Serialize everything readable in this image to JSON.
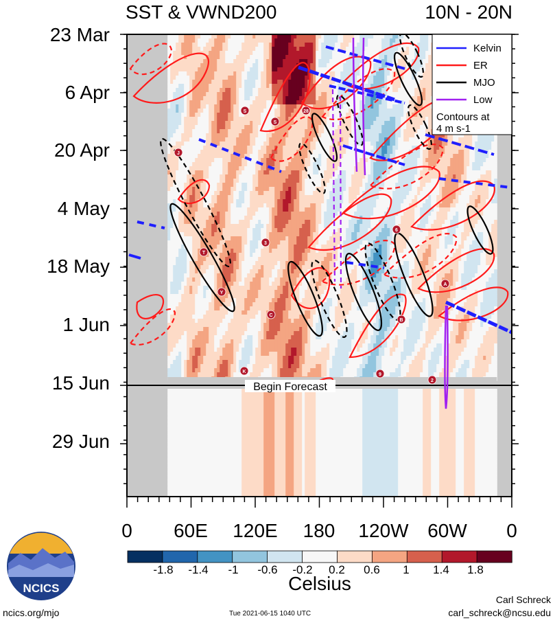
{
  "chart_data": {
    "type": "heatmap",
    "title_left": "SST & VWND200",
    "title_right": "10N - 20N",
    "y_ticks": [
      "23 Mar",
      "6 Apr",
      "20 Apr",
      "4 May",
      "18 May",
      "1 Jun",
      "15 Jun",
      "29 Jun"
    ],
    "x_ticks": [
      "0",
      "60E",
      "120E",
      "180",
      "120W",
      "60W",
      "0"
    ],
    "x_range_deg": [
      0,
      360
    ],
    "forecast_label": "Begin Forecast",
    "legend": {
      "entries": [
        {
          "label": "Kelvin",
          "color": "#1f1fff"
        },
        {
          "label": "ER",
          "color": "#ff1a1a"
        },
        {
          "label": "MJO",
          "color": "#000000"
        },
        {
          "label": "Low",
          "color": "#a020f0"
        }
      ],
      "note_line1": "Contours at",
      "note_line2": "4 m s-1"
    },
    "colorbar": {
      "label": "Celsius",
      "tick_labels": [
        "-1.8",
        "-1.4",
        "-1",
        "-0.6",
        "-0.2",
        "0.2",
        "0.6",
        "1",
        "1.4",
        "1.8"
      ],
      "colors": [
        "#053061",
        "#2166ac",
        "#4393c3",
        "#92c5de",
        "#d1e5f0",
        "#f7f7f7",
        "#fddbc7",
        "#f4a582",
        "#d6604d",
        "#b2182b",
        "#67001f"
      ]
    },
    "storm_markers": [
      "S",
      "S",
      "28",
      "J",
      "T",
      "Y",
      "3",
      "C",
      "K",
      "A",
      "B",
      "6",
      "9",
      "2"
    ]
  },
  "footer": {
    "logo_text": "NCICS",
    "url": "ncics.org/mjo",
    "timestamp": "Tue 2021-06-15 1040 UTC",
    "author": "Carl Schreck",
    "email": "carl_schreck@ncsu.edu"
  }
}
